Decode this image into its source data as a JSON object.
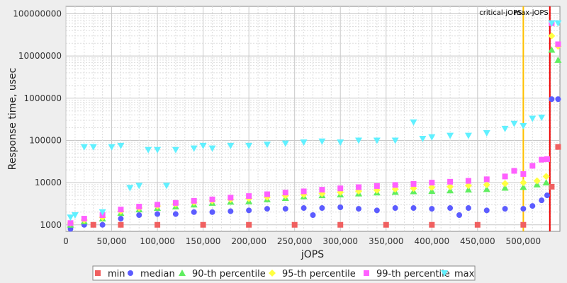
{
  "chart_data": {
    "type": "scatter",
    "xlabel": "jOPS",
    "ylabel": "Response time, usec",
    "x_scale": "linear",
    "y_scale": "log",
    "xlim": [
      0,
      540000
    ],
    "ylim": [
      700,
      150000000
    ],
    "x_ticks": [
      0,
      50000,
      100000,
      150000,
      200000,
      250000,
      300000,
      350000,
      400000,
      450000,
      500000
    ],
    "x_tick_labels": [
      "0",
      "50,000",
      "100,000",
      "150,000",
      "200,000",
      "250,000",
      "300,000",
      "350,000",
      "400,000",
      "450,000",
      "500,000"
    ],
    "y_ticks": [
      1000,
      10000,
      100000,
      1000000,
      10000000,
      100000000
    ],
    "y_tick_labels": [
      "1000",
      "10000",
      "100000",
      "1000000",
      "10000000",
      "100000000"
    ],
    "grid": true,
    "reference_lines": [
      {
        "label": "critical-jOPS",
        "x": 500000,
        "color": "#ffc000"
      },
      {
        "label": "max-jOPS",
        "x": 529000,
        "color": "#ee0000"
      }
    ],
    "legend": {
      "position": "bottom"
    },
    "series": [
      {
        "name": "min",
        "color": "#f06060",
        "marker": "square",
        "points": [
          [
            5000,
            1000
          ],
          [
            30000,
            1000
          ],
          [
            60000,
            1000
          ],
          [
            100000,
            1000
          ],
          [
            150000,
            1000
          ],
          [
            200000,
            1000
          ],
          [
            250000,
            1000
          ],
          [
            300000,
            1000
          ],
          [
            350000,
            1000
          ],
          [
            400000,
            1000
          ],
          [
            450000,
            1000
          ],
          [
            500000,
            1000
          ],
          [
            531000,
            8000
          ],
          [
            538000,
            70000
          ]
        ]
      },
      {
        "name": "median",
        "color": "#5c5cff",
        "marker": "circle",
        "points": [
          [
            5000,
            800
          ],
          [
            20000,
            1000
          ],
          [
            40000,
            1000
          ],
          [
            60000,
            1400
          ],
          [
            80000,
            1700
          ],
          [
            100000,
            1800
          ],
          [
            120000,
            1800
          ],
          [
            140000,
            2000
          ],
          [
            160000,
            2000
          ],
          [
            180000,
            2100
          ],
          [
            200000,
            2200
          ],
          [
            220000,
            2400
          ],
          [
            240000,
            2400
          ],
          [
            260000,
            2500
          ],
          [
            270000,
            1700
          ],
          [
            280000,
            2500
          ],
          [
            300000,
            2600
          ],
          [
            320000,
            2400
          ],
          [
            340000,
            2200
          ],
          [
            360000,
            2500
          ],
          [
            380000,
            2500
          ],
          [
            400000,
            2400
          ],
          [
            420000,
            2500
          ],
          [
            430000,
            1700
          ],
          [
            440000,
            2500
          ],
          [
            460000,
            2200
          ],
          [
            480000,
            2400
          ],
          [
            500000,
            2400
          ],
          [
            510000,
            2800
          ],
          [
            520000,
            3800
          ],
          [
            526000,
            5000
          ],
          [
            531000,
            950000
          ],
          [
            538000,
            950000
          ]
        ]
      },
      {
        "name": "90-th percentile",
        "color": "#60ee60",
        "marker": "triangle-up",
        "points": [
          [
            5000,
            1000
          ],
          [
            20000,
            1200
          ],
          [
            40000,
            1400
          ],
          [
            60000,
            1900
          ],
          [
            80000,
            2300
          ],
          [
            100000,
            2500
          ],
          [
            120000,
            2700
          ],
          [
            140000,
            3000
          ],
          [
            160000,
            3300
          ],
          [
            180000,
            3500
          ],
          [
            200000,
            3600
          ],
          [
            220000,
            4000
          ],
          [
            240000,
            4300
          ],
          [
            260000,
            4700
          ],
          [
            280000,
            5000
          ],
          [
            300000,
            5200
          ],
          [
            320000,
            5500
          ],
          [
            340000,
            5800
          ],
          [
            360000,
            6000
          ],
          [
            380000,
            6200
          ],
          [
            400000,
            6300
          ],
          [
            420000,
            6500
          ],
          [
            440000,
            6800
          ],
          [
            460000,
            7000
          ],
          [
            480000,
            7500
          ],
          [
            500000,
            7800
          ],
          [
            515000,
            9000
          ],
          [
            525000,
            10000
          ],
          [
            531000,
            14000000
          ],
          [
            538000,
            8000000
          ]
        ]
      },
      {
        "name": "95-th percentile",
        "color": "#ffff40",
        "marker": "diamond",
        "points": [
          [
            5000,
            1100
          ],
          [
            20000,
            1300
          ],
          [
            40000,
            1500
          ],
          [
            60000,
            2100
          ],
          [
            80000,
            2500
          ],
          [
            100000,
            2800
          ],
          [
            120000,
            3100
          ],
          [
            140000,
            3400
          ],
          [
            160000,
            3700
          ],
          [
            180000,
            4000
          ],
          [
            200000,
            4200
          ],
          [
            220000,
            4500
          ],
          [
            240000,
            4900
          ],
          [
            260000,
            5200
          ],
          [
            280000,
            5500
          ],
          [
            300000,
            5900
          ],
          [
            320000,
            6300
          ],
          [
            340000,
            6600
          ],
          [
            360000,
            7000
          ],
          [
            380000,
            7300
          ],
          [
            400000,
            7700
          ],
          [
            420000,
            8000
          ],
          [
            440000,
            8500
          ],
          [
            460000,
            8900
          ],
          [
            480000,
            9500
          ],
          [
            500000,
            10000
          ],
          [
            515000,
            11000
          ],
          [
            525000,
            14000
          ],
          [
            531000,
            30000000
          ],
          [
            538000,
            17000000
          ]
        ]
      },
      {
        "name": "99-th percentile",
        "color": "#ff60ff",
        "marker": "square",
        "points": [
          [
            5000,
            1100
          ],
          [
            20000,
            1400
          ],
          [
            40000,
            1700
          ],
          [
            60000,
            2300
          ],
          [
            80000,
            2700
          ],
          [
            100000,
            3000
          ],
          [
            120000,
            3300
          ],
          [
            140000,
            3700
          ],
          [
            160000,
            4000
          ],
          [
            180000,
            4400
          ],
          [
            200000,
            4800
          ],
          [
            220000,
            5300
          ],
          [
            240000,
            5800
          ],
          [
            260000,
            6200
          ],
          [
            280000,
            6800
          ],
          [
            300000,
            7300
          ],
          [
            320000,
            7800
          ],
          [
            340000,
            8300
          ],
          [
            360000,
            8800
          ],
          [
            380000,
            9300
          ],
          [
            400000,
            10000
          ],
          [
            420000,
            10500
          ],
          [
            440000,
            11000
          ],
          [
            460000,
            12000
          ],
          [
            480000,
            14000
          ],
          [
            490000,
            19000
          ],
          [
            500000,
            16000
          ],
          [
            510000,
            25000
          ],
          [
            520000,
            35000
          ],
          [
            526000,
            36000
          ],
          [
            531000,
            60000000
          ],
          [
            538000,
            19000000
          ]
        ]
      },
      {
        "name": "max",
        "color": "#60f0ff",
        "marker": "triangle-down",
        "points": [
          [
            5000,
            1500
          ],
          [
            10000,
            1700
          ],
          [
            20000,
            70000
          ],
          [
            30000,
            70000
          ],
          [
            40000,
            2000
          ],
          [
            50000,
            70000
          ],
          [
            60000,
            75000
          ],
          [
            70000,
            7500
          ],
          [
            80000,
            8500
          ],
          [
            90000,
            60000
          ],
          [
            100000,
            60000
          ],
          [
            110000,
            8500
          ],
          [
            120000,
            60000
          ],
          [
            140000,
            65000
          ],
          [
            150000,
            75000
          ],
          [
            160000,
            65000
          ],
          [
            180000,
            75000
          ],
          [
            200000,
            75000
          ],
          [
            220000,
            80000
          ],
          [
            240000,
            85000
          ],
          [
            260000,
            90000
          ],
          [
            280000,
            95000
          ],
          [
            300000,
            90000
          ],
          [
            320000,
            100000
          ],
          [
            340000,
            100000
          ],
          [
            360000,
            100000
          ],
          [
            380000,
            270000
          ],
          [
            390000,
            110000
          ],
          [
            400000,
            120000
          ],
          [
            420000,
            130000
          ],
          [
            440000,
            130000
          ],
          [
            460000,
            150000
          ],
          [
            480000,
            190000
          ],
          [
            490000,
            250000
          ],
          [
            500000,
            220000
          ],
          [
            510000,
            330000
          ],
          [
            520000,
            350000
          ],
          [
            531000,
            60000000
          ],
          [
            538000,
            60000000
          ]
        ]
      }
    ]
  }
}
